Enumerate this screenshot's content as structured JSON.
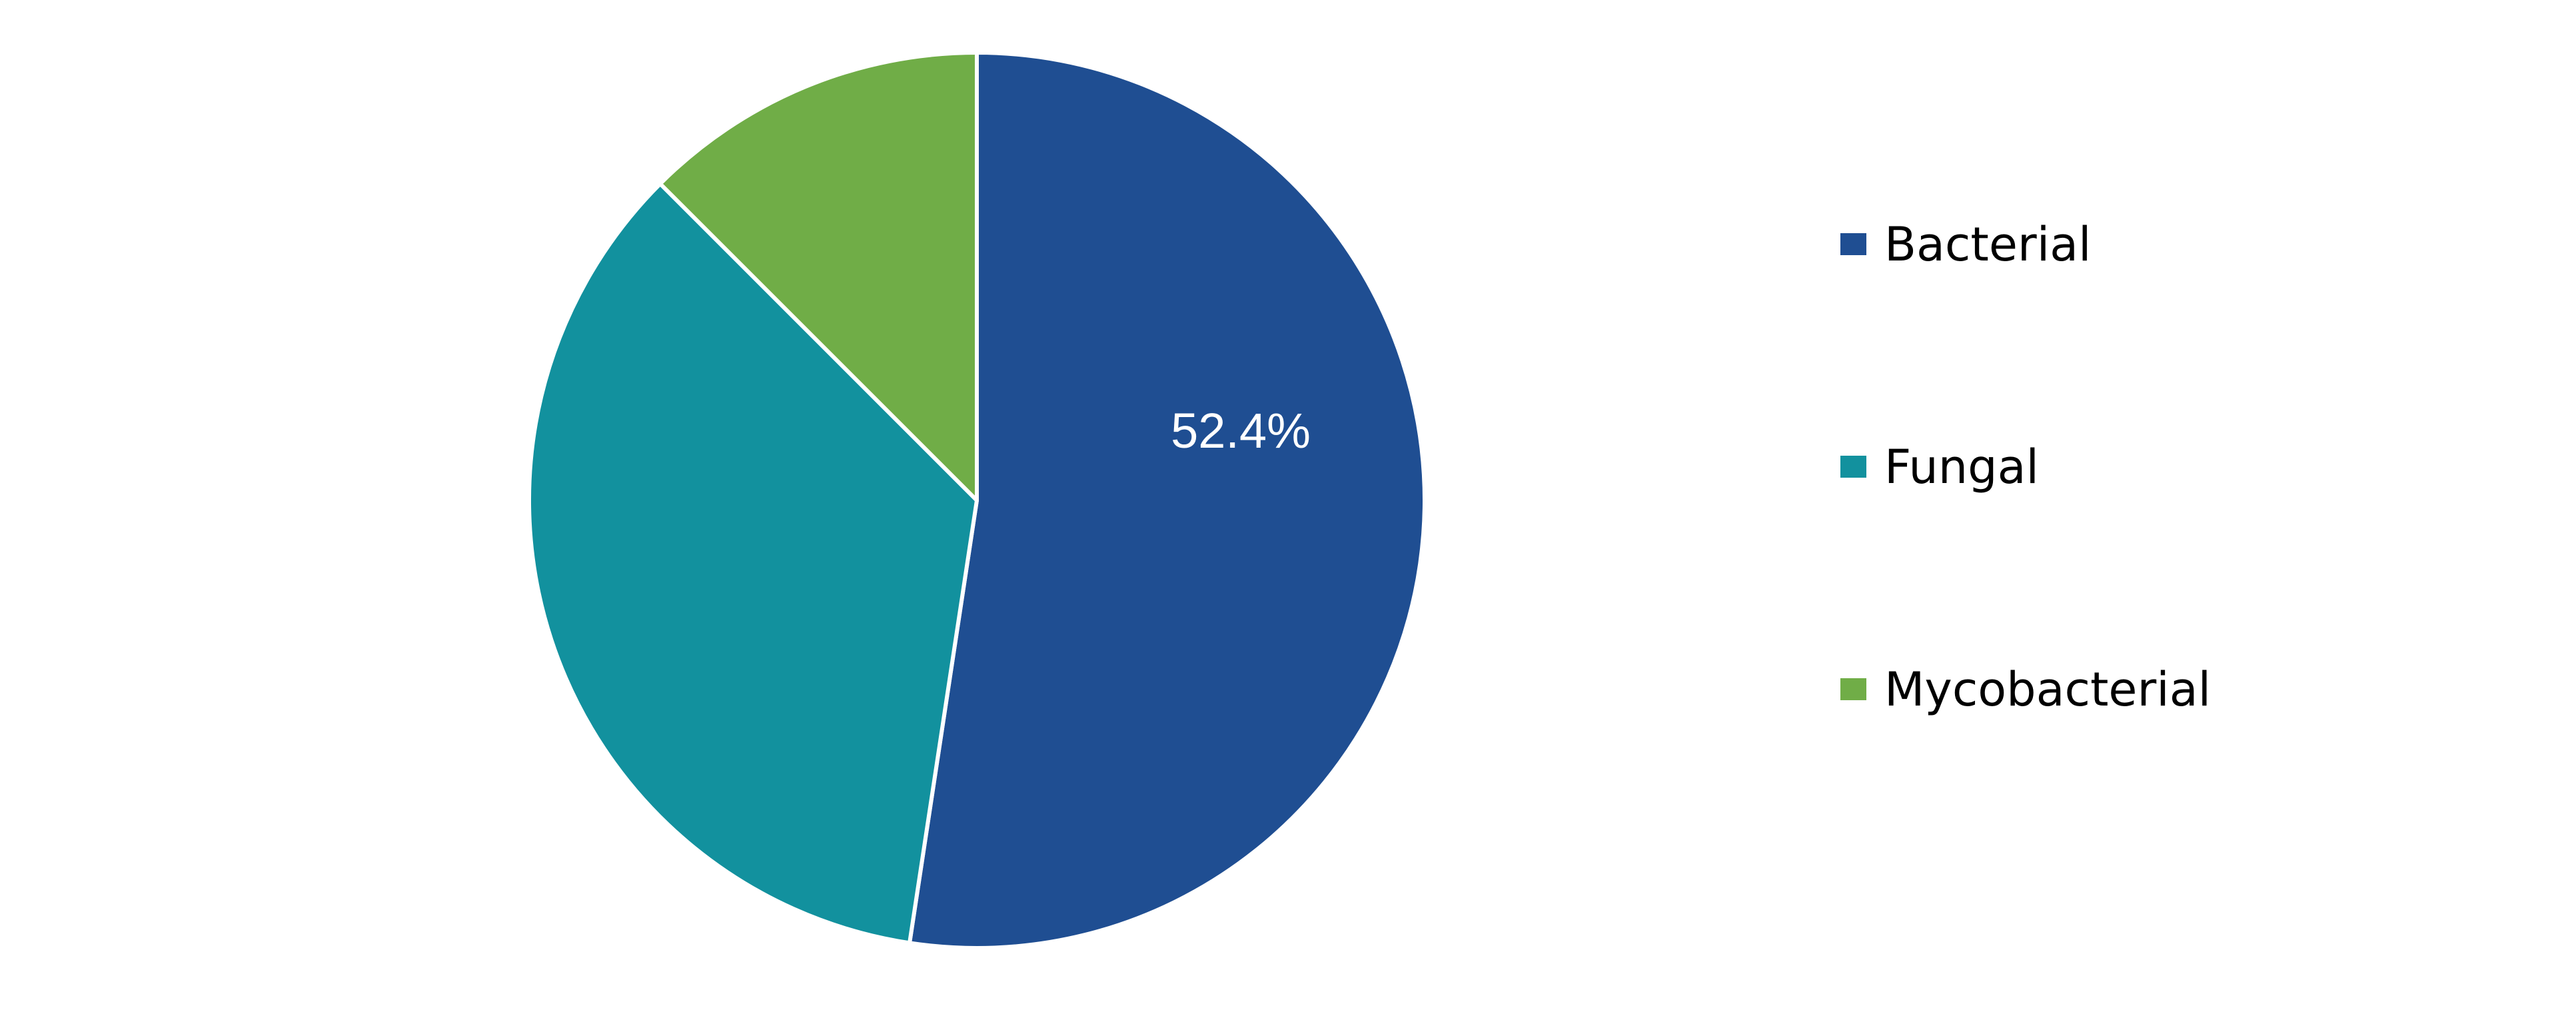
{
  "chart_data": {
    "type": "pie",
    "title": "",
    "start_angle": "12 o'clock",
    "direction": "clockwise",
    "legend_position": "right",
    "slices": [
      {
        "name": "Bacterial",
        "value": 52.4,
        "color": "#1F4E92",
        "label": "52.4%"
      },
      {
        "name": "Fungal",
        "value": 35.1,
        "color": "#12919E",
        "label": ""
      },
      {
        "name": "Mycobacterial",
        "value": 12.5,
        "color": "#70AD47",
        "label": ""
      }
    ]
  }
}
